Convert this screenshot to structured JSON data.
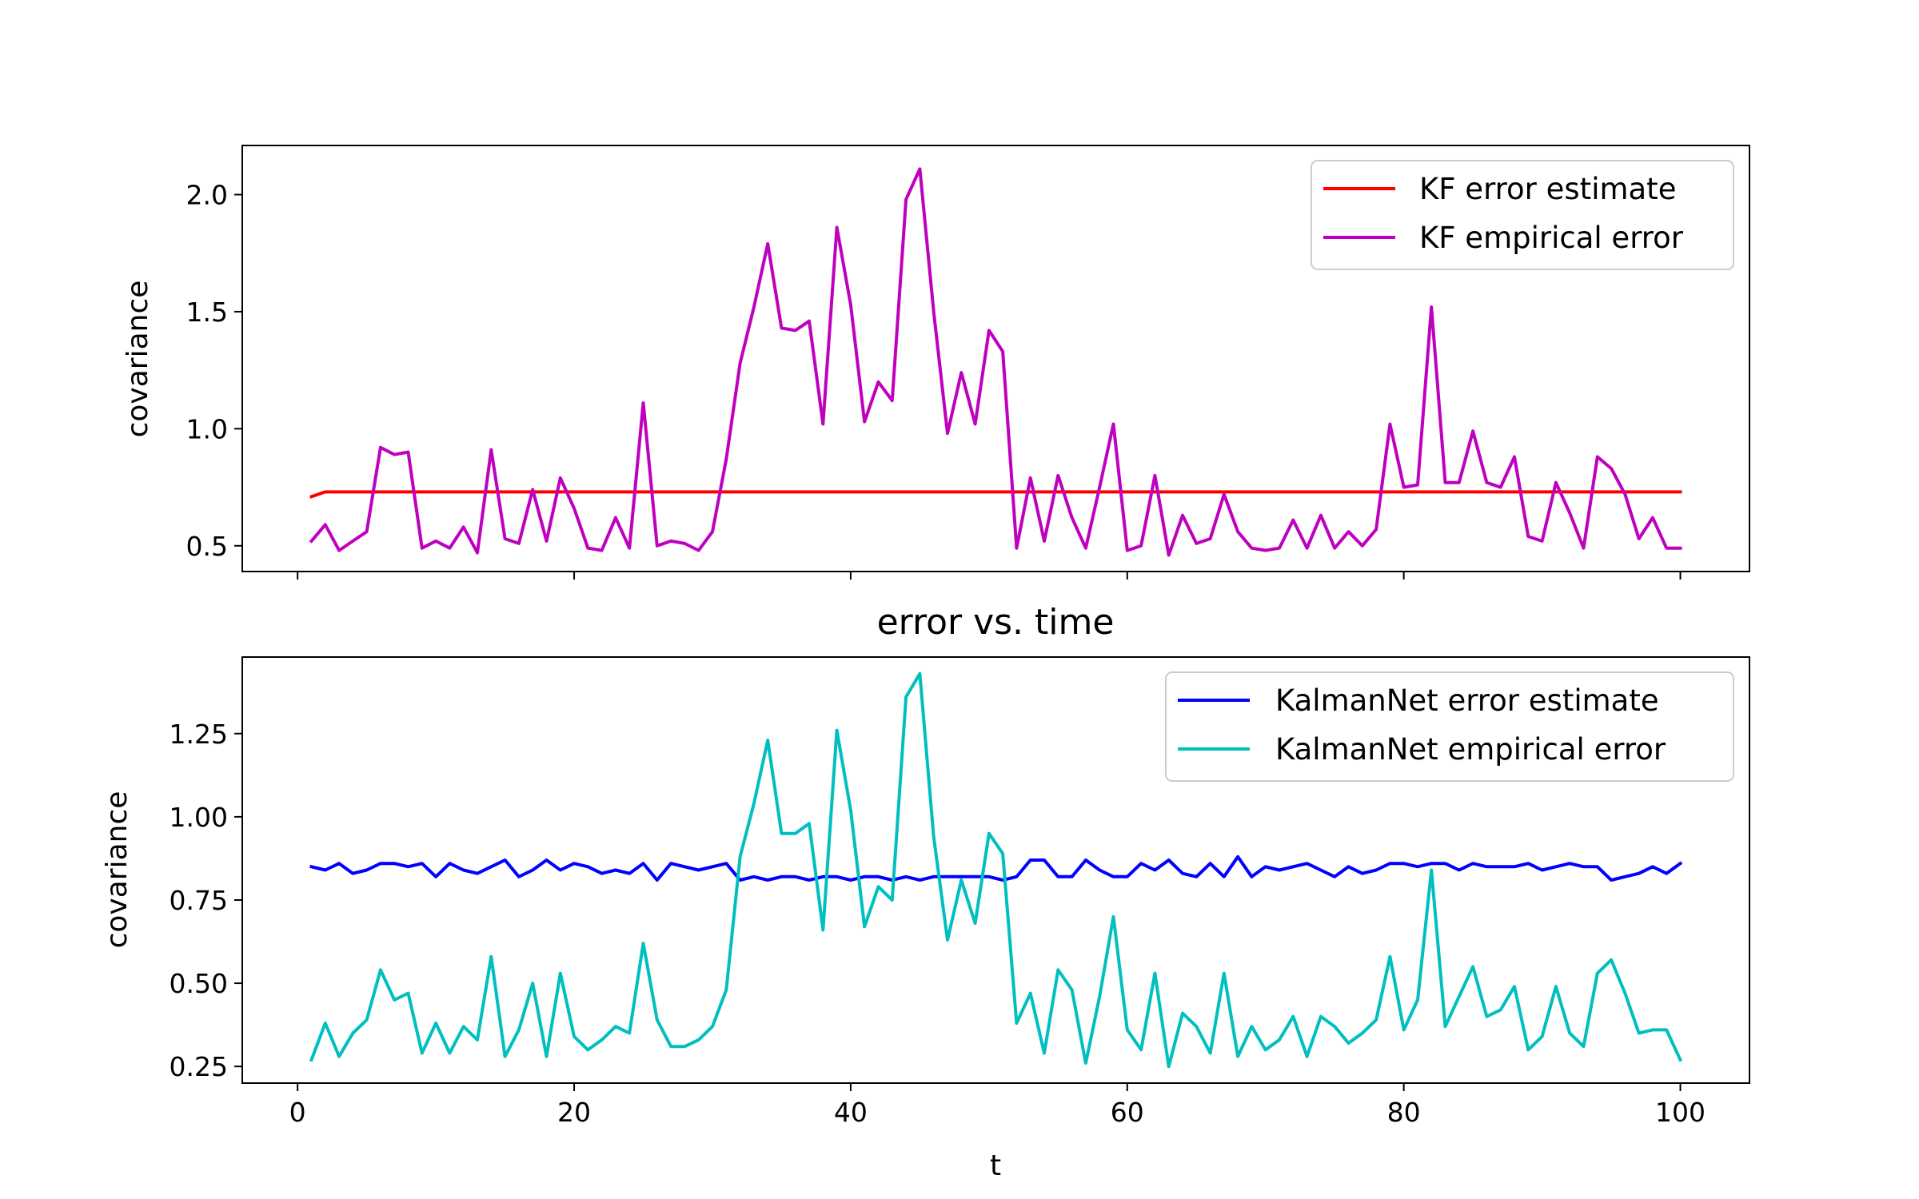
{
  "chart_data": [
    {
      "type": "line",
      "title": "",
      "xlabel": "",
      "ylabel": "covariance",
      "xlim": [
        -4,
        105
      ],
      "ylim": [
        0.39,
        2.21
      ],
      "xticks": [
        0,
        20,
        40,
        60,
        80,
        100
      ],
      "xtick_labels_visible": false,
      "yticks": [
        0.5,
        1.0,
        1.5,
        2.0
      ],
      "ytick_labels": [
        "0.5",
        "1.0",
        "1.5",
        "2.0"
      ],
      "legend_position": "upper right",
      "grid": false,
      "series": [
        {
          "name": "KF error estimate",
          "color": "#ff0000",
          "x": [
            1,
            2,
            100
          ],
          "y": [
            0.71,
            0.73,
            0.73
          ]
        },
        {
          "name": "KF empirical error",
          "color": "#bf00bf",
          "x": [
            1,
            2,
            3,
            4,
            5,
            6,
            7,
            8,
            9,
            10,
            11,
            12,
            13,
            14,
            15,
            16,
            17,
            18,
            19,
            20,
            21,
            22,
            23,
            24,
            25,
            26,
            27,
            28,
            29,
            30,
            31,
            32,
            33,
            34,
            35,
            36,
            37,
            38,
            39,
            40,
            41,
            42,
            43,
            44,
            45,
            46,
            47,
            48,
            49,
            50,
            51,
            52,
            53,
            54,
            55,
            56,
            57,
            58,
            59,
            60,
            61,
            62,
            63,
            64,
            65,
            66,
            67,
            68,
            69,
            70,
            71,
            72,
            73,
            74,
            75,
            76,
            77,
            78,
            79,
            80,
            81,
            82,
            83,
            84,
            85,
            86,
            87,
            88,
            89,
            90,
            91,
            92,
            93,
            94,
            95,
            96,
            97,
            98,
            99,
            100
          ],
          "y": [
            0.52,
            0.59,
            0.48,
            0.52,
            0.56,
            0.92,
            0.89,
            0.9,
            0.49,
            0.52,
            0.49,
            0.58,
            0.47,
            0.91,
            0.53,
            0.51,
            0.74,
            0.52,
            0.79,
            0.66,
            0.49,
            0.48,
            0.62,
            0.49,
            1.11,
            0.5,
            0.52,
            0.51,
            0.48,
            0.56,
            0.87,
            1.28,
            1.52,
            1.79,
            1.43,
            1.42,
            1.46,
            1.02,
            1.86,
            1.53,
            1.03,
            1.2,
            1.12,
            1.98,
            2.11,
            1.5,
            0.98,
            1.24,
            1.02,
            1.42,
            1.33,
            0.49,
            0.79,
            0.52,
            0.8,
            0.62,
            0.49,
            0.75,
            1.02,
            0.48,
            0.5,
            0.8,
            0.46,
            0.63,
            0.51,
            0.53,
            0.72,
            0.56,
            0.49,
            0.48,
            0.49,
            0.61,
            0.49,
            0.63,
            0.49,
            0.56,
            0.5,
            0.57,
            1.02,
            0.75,
            0.76,
            1.52,
            0.77,
            0.77,
            0.99,
            0.77,
            0.75,
            0.88,
            0.54,
            0.52,
            0.77,
            0.64,
            0.49,
            0.88,
            0.83,
            0.72,
            0.53,
            0.62,
            0.49,
            0.49
          ]
        }
      ]
    },
    {
      "type": "line",
      "title": "error vs. time",
      "xlabel": "t",
      "ylabel": "covariance",
      "xlim": [
        -4,
        105
      ],
      "ylim": [
        0.2,
        1.48
      ],
      "xticks": [
        0,
        20,
        40,
        60,
        80,
        100
      ],
      "xtick_labels": [
        "0",
        "20",
        "40",
        "60",
        "80",
        "100"
      ],
      "yticks": [
        0.25,
        0.5,
        0.75,
        1.0,
        1.25
      ],
      "ytick_labels": [
        "0.25",
        "0.50",
        "0.75",
        "1.00",
        "1.25"
      ],
      "legend_position": "upper right",
      "grid": false,
      "series": [
        {
          "name": "KalmanNet error estimate",
          "color": "#0000ff",
          "x": [
            1,
            2,
            3,
            4,
            5,
            6,
            7,
            8,
            9,
            10,
            11,
            12,
            13,
            14,
            15,
            16,
            17,
            18,
            19,
            20,
            21,
            22,
            23,
            24,
            25,
            26,
            27,
            28,
            29,
            30,
            31,
            32,
            33,
            34,
            35,
            36,
            37,
            38,
            39,
            40,
            41,
            42,
            43,
            44,
            45,
            46,
            47,
            48,
            49,
            50,
            51,
            52,
            53,
            54,
            55,
            56,
            57,
            58,
            59,
            60,
            61,
            62,
            63,
            64,
            65,
            66,
            67,
            68,
            69,
            70,
            71,
            72,
            73,
            74,
            75,
            76,
            77,
            78,
            79,
            80,
            81,
            82,
            83,
            84,
            85,
            86,
            87,
            88,
            89,
            90,
            91,
            92,
            93,
            94,
            95,
            96,
            97,
            98,
            99,
            100
          ],
          "y": [
            0.85,
            0.84,
            0.86,
            0.83,
            0.84,
            0.86,
            0.86,
            0.85,
            0.86,
            0.82,
            0.86,
            0.84,
            0.83,
            0.85,
            0.87,
            0.82,
            0.84,
            0.87,
            0.84,
            0.86,
            0.85,
            0.83,
            0.84,
            0.83,
            0.86,
            0.81,
            0.86,
            0.85,
            0.84,
            0.85,
            0.86,
            0.81,
            0.82,
            0.81,
            0.82,
            0.82,
            0.81,
            0.82,
            0.82,
            0.81,
            0.82,
            0.82,
            0.81,
            0.82,
            0.81,
            0.82,
            0.82,
            0.82,
            0.82,
            0.82,
            0.81,
            0.82,
            0.87,
            0.87,
            0.82,
            0.82,
            0.87,
            0.84,
            0.82,
            0.82,
            0.86,
            0.84,
            0.87,
            0.83,
            0.82,
            0.86,
            0.82,
            0.88,
            0.82,
            0.85,
            0.84,
            0.85,
            0.86,
            0.84,
            0.82,
            0.85,
            0.83,
            0.84,
            0.86,
            0.86,
            0.85,
            0.86,
            0.86,
            0.84,
            0.86,
            0.85,
            0.85,
            0.85,
            0.86,
            0.84,
            0.85,
            0.86,
            0.85,
            0.85,
            0.81,
            0.82,
            0.83,
            0.85,
            0.83,
            0.86
          ]
        },
        {
          "name": "KalmanNet empirical error",
          "color": "#00bfbf",
          "x": [
            1,
            2,
            3,
            4,
            5,
            6,
            7,
            8,
            9,
            10,
            11,
            12,
            13,
            14,
            15,
            16,
            17,
            18,
            19,
            20,
            21,
            22,
            23,
            24,
            25,
            26,
            27,
            28,
            29,
            30,
            31,
            32,
            33,
            34,
            35,
            36,
            37,
            38,
            39,
            40,
            41,
            42,
            43,
            44,
            45,
            46,
            47,
            48,
            49,
            50,
            51,
            52,
            53,
            54,
            55,
            56,
            57,
            58,
            59,
            60,
            61,
            62,
            63,
            64,
            65,
            66,
            67,
            68,
            69,
            70,
            71,
            72,
            73,
            74,
            75,
            76,
            77,
            78,
            79,
            80,
            81,
            82,
            83,
            84,
            85,
            86,
            87,
            88,
            89,
            90,
            91,
            92,
            93,
            94,
            95,
            96,
            97,
            98,
            99,
            100
          ],
          "y": [
            0.27,
            0.38,
            0.28,
            0.35,
            0.39,
            0.54,
            0.45,
            0.47,
            0.29,
            0.38,
            0.29,
            0.37,
            0.33,
            0.58,
            0.28,
            0.36,
            0.5,
            0.28,
            0.53,
            0.34,
            0.3,
            0.33,
            0.37,
            0.35,
            0.62,
            0.39,
            0.31,
            0.31,
            0.33,
            0.37,
            0.48,
            0.88,
            1.04,
            1.23,
            0.95,
            0.95,
            0.98,
            0.66,
            1.26,
            1.02,
            0.67,
            0.79,
            0.75,
            1.36,
            1.43,
            0.94,
            0.63,
            0.81,
            0.68,
            0.95,
            0.89,
            0.38,
            0.47,
            0.29,
            0.54,
            0.48,
            0.26,
            0.46,
            0.7,
            0.36,
            0.3,
            0.53,
            0.25,
            0.41,
            0.37,
            0.29,
            0.53,
            0.28,
            0.37,
            0.3,
            0.33,
            0.4,
            0.28,
            0.4,
            0.37,
            0.32,
            0.35,
            0.39,
            0.58,
            0.36,
            0.45,
            0.84,
            0.37,
            0.46,
            0.55,
            0.4,
            0.42,
            0.49,
            0.3,
            0.34,
            0.49,
            0.35,
            0.31,
            0.53,
            0.57,
            0.47,
            0.35,
            0.36,
            0.36,
            0.27
          ]
        }
      ]
    }
  ]
}
